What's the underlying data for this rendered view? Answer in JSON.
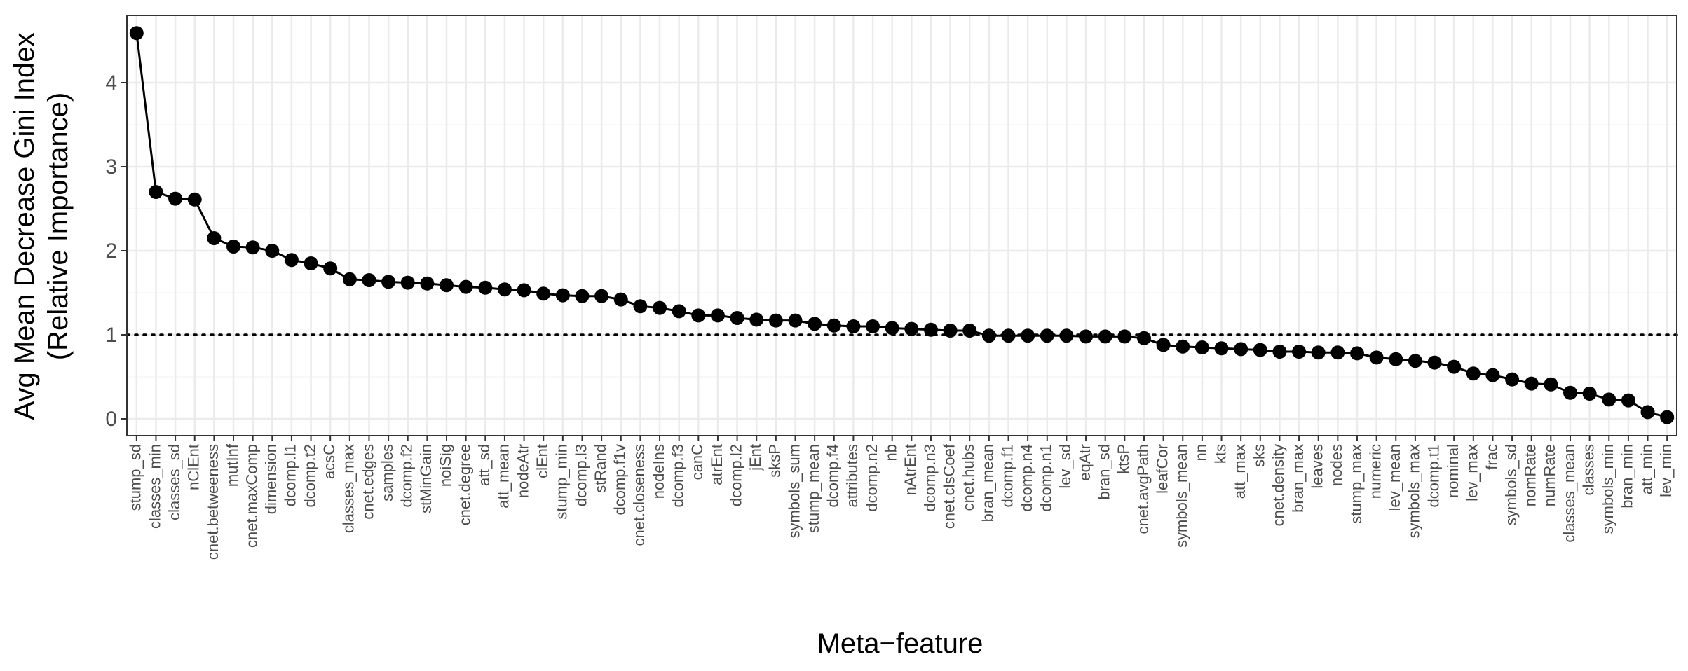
{
  "chart_data": {
    "type": "line",
    "markers": true,
    "xlabel": "Meta−feature",
    "ylabel_lines": [
      "Avg Mean Decrease Gini Index",
      "(Relative Importance)"
    ],
    "ylim": [
      -0.2,
      4.8
    ],
    "yticks": [
      0,
      1,
      2,
      3,
      4
    ],
    "reference_line": {
      "y": 1,
      "style": "dotted"
    },
    "grid": true,
    "legend": "none",
    "colors": {
      "line": "#000000",
      "marker": "#000000",
      "grid_major": "#ebebeb",
      "grid_minor": "#f5f5f5",
      "panel_border": "#333333",
      "tick_text": "#4d4d4d"
    },
    "categories": [
      "stump_sd",
      "classes_min",
      "classes_sd",
      "nClEnt",
      "cnet.betweeness",
      "mutInf",
      "cnet.maxComp",
      "dimension",
      "dcomp.l1",
      "dcomp.t2",
      "acsC",
      "classes_max",
      "cnet.edges",
      "samples",
      "dcomp.f2",
      "stMinGain",
      "noiSig",
      "cnet.degree",
      "att_sd",
      "att_mean",
      "nodeAtr",
      "clEnt",
      "stump_min",
      "dcomp.l3",
      "stRand",
      "dcomp.f1v",
      "cnet.closeness",
      "nodeIns",
      "dcomp.f3",
      "canC",
      "atrEnt",
      "dcomp.l2",
      "jEnt",
      "sksP",
      "symbols_sum",
      "stump_mean",
      "dcomp.f4",
      "attributes",
      "dcomp.n2",
      "nb",
      "nAtrEnt",
      "dcomp.n3",
      "cnet.clsCoef",
      "cnet.hubs",
      "bran_mean",
      "dcomp.f1",
      "dcomp.n4",
      "dcomp.n1",
      "lev_sd",
      "eqAtr",
      "bran_sd",
      "ktsP",
      "cnet.avgPath",
      "leafCor",
      "symbols_mean",
      "nn",
      "kts",
      "att_max",
      "sks",
      "cnet.density",
      "bran_max",
      "leaves",
      "nodes",
      "stump_max",
      "numeric",
      "lev_mean",
      "symbols_max",
      "dcomp.t1",
      "nominal",
      "lev_max",
      "frac",
      "symbols_sd",
      "nomRate",
      "numRate",
      "classes_mean",
      "classes",
      "symbols_min",
      "bran_min",
      "att_min",
      "lev_min"
    ],
    "values": [
      4.59,
      2.7,
      2.62,
      2.61,
      2.15,
      2.05,
      2.04,
      2.0,
      1.89,
      1.85,
      1.79,
      1.66,
      1.65,
      1.63,
      1.62,
      1.61,
      1.59,
      1.57,
      1.56,
      1.54,
      1.53,
      1.49,
      1.47,
      1.46,
      1.46,
      1.42,
      1.34,
      1.32,
      1.28,
      1.23,
      1.23,
      1.2,
      1.18,
      1.17,
      1.17,
      1.13,
      1.11,
      1.1,
      1.1,
      1.08,
      1.07,
      1.06,
      1.05,
      1.05,
      0.99,
      0.99,
      0.99,
      0.99,
      0.99,
      0.98,
      0.98,
      0.98,
      0.96,
      0.88,
      0.86,
      0.85,
      0.84,
      0.83,
      0.82,
      0.8,
      0.8,
      0.79,
      0.79,
      0.78,
      0.73,
      0.71,
      0.69,
      0.67,
      0.62,
      0.54,
      0.52,
      0.47,
      0.42,
      0.41,
      0.31,
      0.3,
      0.23,
      0.22,
      0.08,
      0.02
    ]
  }
}
